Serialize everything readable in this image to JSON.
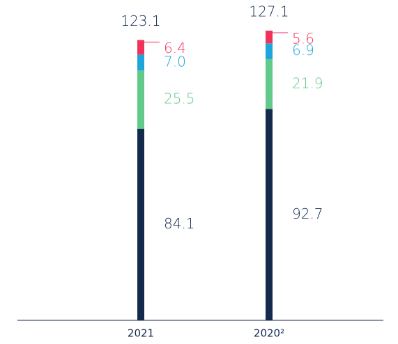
{
  "chart_data": {
    "type": "stacked_bar",
    "categories": [
      "2021",
      "2020²"
    ],
    "totals": [
      123.1,
      127.1
    ],
    "series": [
      {
        "color": "#142a4d",
        "values": [
          84.1,
          92.7
        ]
      },
      {
        "color": "#62c98a",
        "values": [
          25.5,
          21.9
        ]
      },
      {
        "color": "#1ea6dc",
        "values": [
          7.0,
          6.9
        ],
        "value_labels": [
          "7.0",
          "6.9"
        ]
      },
      {
        "color": "#f1325b",
        "values": [
          6.4,
          5.6
        ]
      }
    ]
  }
}
